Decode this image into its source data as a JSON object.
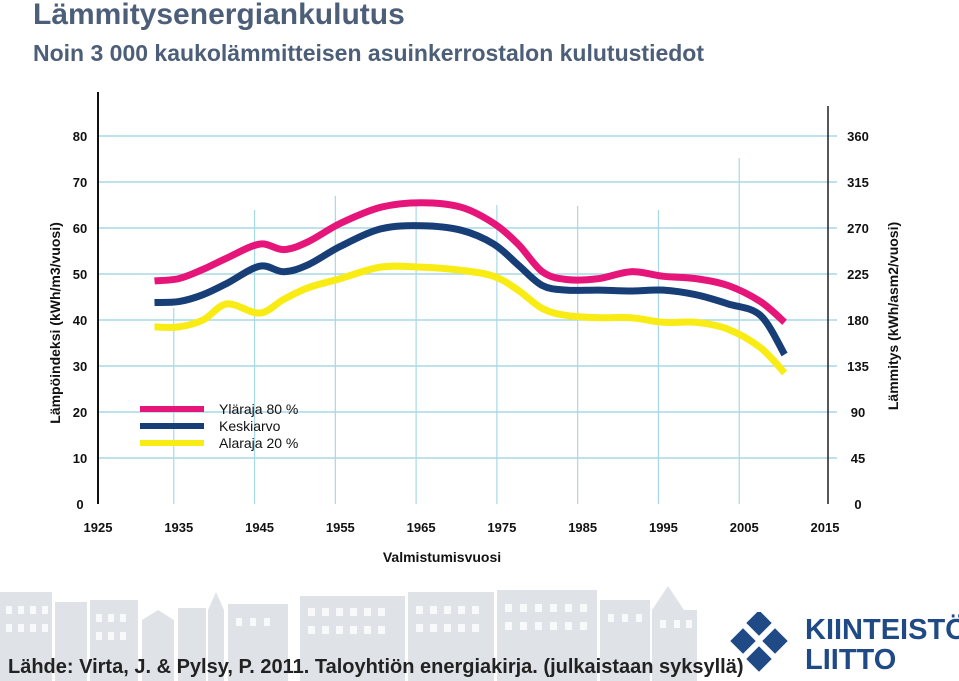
{
  "title": "Lämmitysenergiankulutus",
  "subtitle": "Noin 3 000 kaukolämmitteisen asuinkerrostalon kulutustiedot",
  "source": "Lähde: Virta, J. & Pylsy, P. 2011. Taloyhtiön energiakirja. (julkaistaan syksyllä)",
  "logo": {
    "line1": "KIINTEISTÖ",
    "line2": "LIITTO"
  },
  "colors": {
    "title": "#4d5f78",
    "grid": "#a8d8e6",
    "axis": "#111111",
    "upper": "#e5157a",
    "mean": "#173e76",
    "lower": "#f9ec14",
    "logo": "#1f4a86"
  },
  "chart_data": {
    "type": "line",
    "title": "",
    "xlabel": "Valmistumisvuosi",
    "ylabel": "Lämpöindeksi (kWh/m3/vuosi)",
    "y2label": "Lämmitys (kWh/asm2/vuosi)",
    "xlim": [
      1925,
      2015
    ],
    "ylim": [
      0,
      80
    ],
    "y2lim": [
      0,
      360
    ],
    "xticks": [
      "1925",
      "1935",
      "1945",
      "1955",
      "1965",
      "1975",
      "1985",
      "1995",
      "2005",
      "2015"
    ],
    "yticks": [
      "0",
      "10",
      "20",
      "30",
      "40",
      "50",
      "60",
      "70",
      "80"
    ],
    "y2ticks": [
      "0",
      "45",
      "90",
      "135",
      "180",
      "225",
      "270",
      "315",
      "360"
    ],
    "legend_position": "bottom-left",
    "x": [
      1932,
      1935,
      1938,
      1941,
      1945,
      1948,
      1951,
      1955,
      1960,
      1965,
      1970,
      1974,
      1977,
      1980,
      1983,
      1987,
      1991,
      1995,
      1999,
      2003,
      2007,
      2010
    ],
    "series": [
      {
        "name": "Yläraja 80 %",
        "values": [
          48.5,
          49,
          51,
          53.5,
          56.5,
          55.3,
          57,
          61,
          64.5,
          65.5,
          64.5,
          61,
          56.5,
          50.5,
          48.8,
          49,
          50.5,
          49.5,
          49,
          47.5,
          44,
          39.5
        ]
      },
      {
        "name": "Keskiarvo",
        "values": [
          43.8,
          44,
          45.5,
          48,
          51.7,
          50.5,
          52,
          56,
          59.8,
          60.5,
          59.5,
          56.5,
          52,
          47.5,
          46.5,
          46.5,
          46.3,
          46.5,
          45.5,
          43.5,
          41,
          32.5
        ]
      },
      {
        "name": "Alaraja 20 %",
        "values": [
          38.5,
          38.5,
          40,
          43.5,
          41.5,
          44.5,
          47,
          49,
          51.5,
          51.5,
          50.8,
          49.5,
          46.5,
          42.5,
          41,
          40.5,
          40.5,
          39.5,
          39.5,
          38,
          34,
          28.5
        ]
      }
    ]
  }
}
